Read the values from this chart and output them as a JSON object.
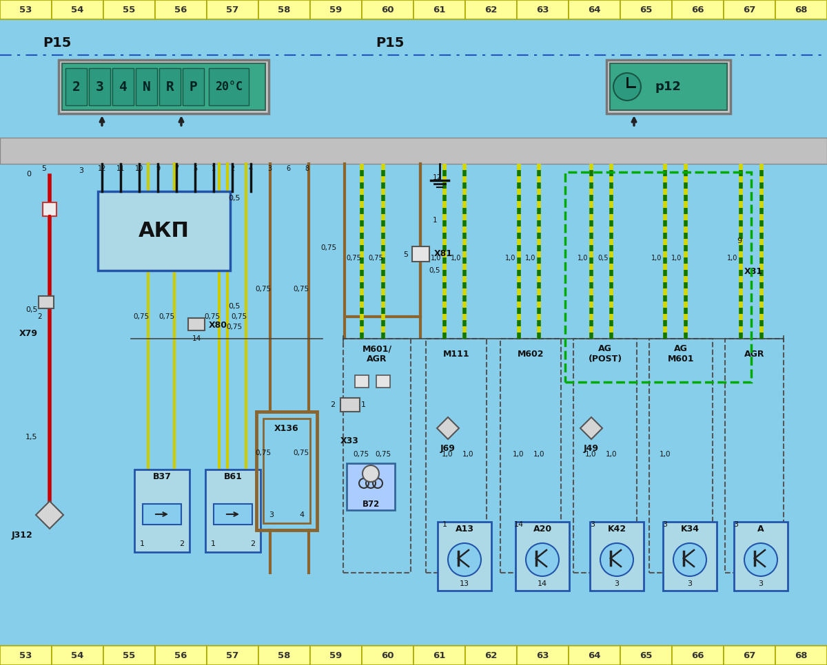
{
  "bg_color": "#87ceeb",
  "fig_bg": "#ffffff",
  "col_numbers": [
    "53",
    "54",
    "55",
    "56",
    "57",
    "58",
    "59",
    "60",
    "61",
    "62",
    "63",
    "64",
    "65",
    "66",
    "67",
    "68"
  ],
  "col_bg": "#ffff99",
  "col_border": "#aaa800",
  "p15_label": "P15",
  "wire_brown": "#8B6530",
  "wire_black": "#222222",
  "wire_red": "#cc0000",
  "wire_yellow": "#cccc00",
  "component_fill": "#add8e6",
  "component_border": "#336699",
  "gray_bus": "#b8b8b8",
  "display_fill": "#40b090",
  "display_text_color": "#002222",
  "green_border": "#00aa00"
}
